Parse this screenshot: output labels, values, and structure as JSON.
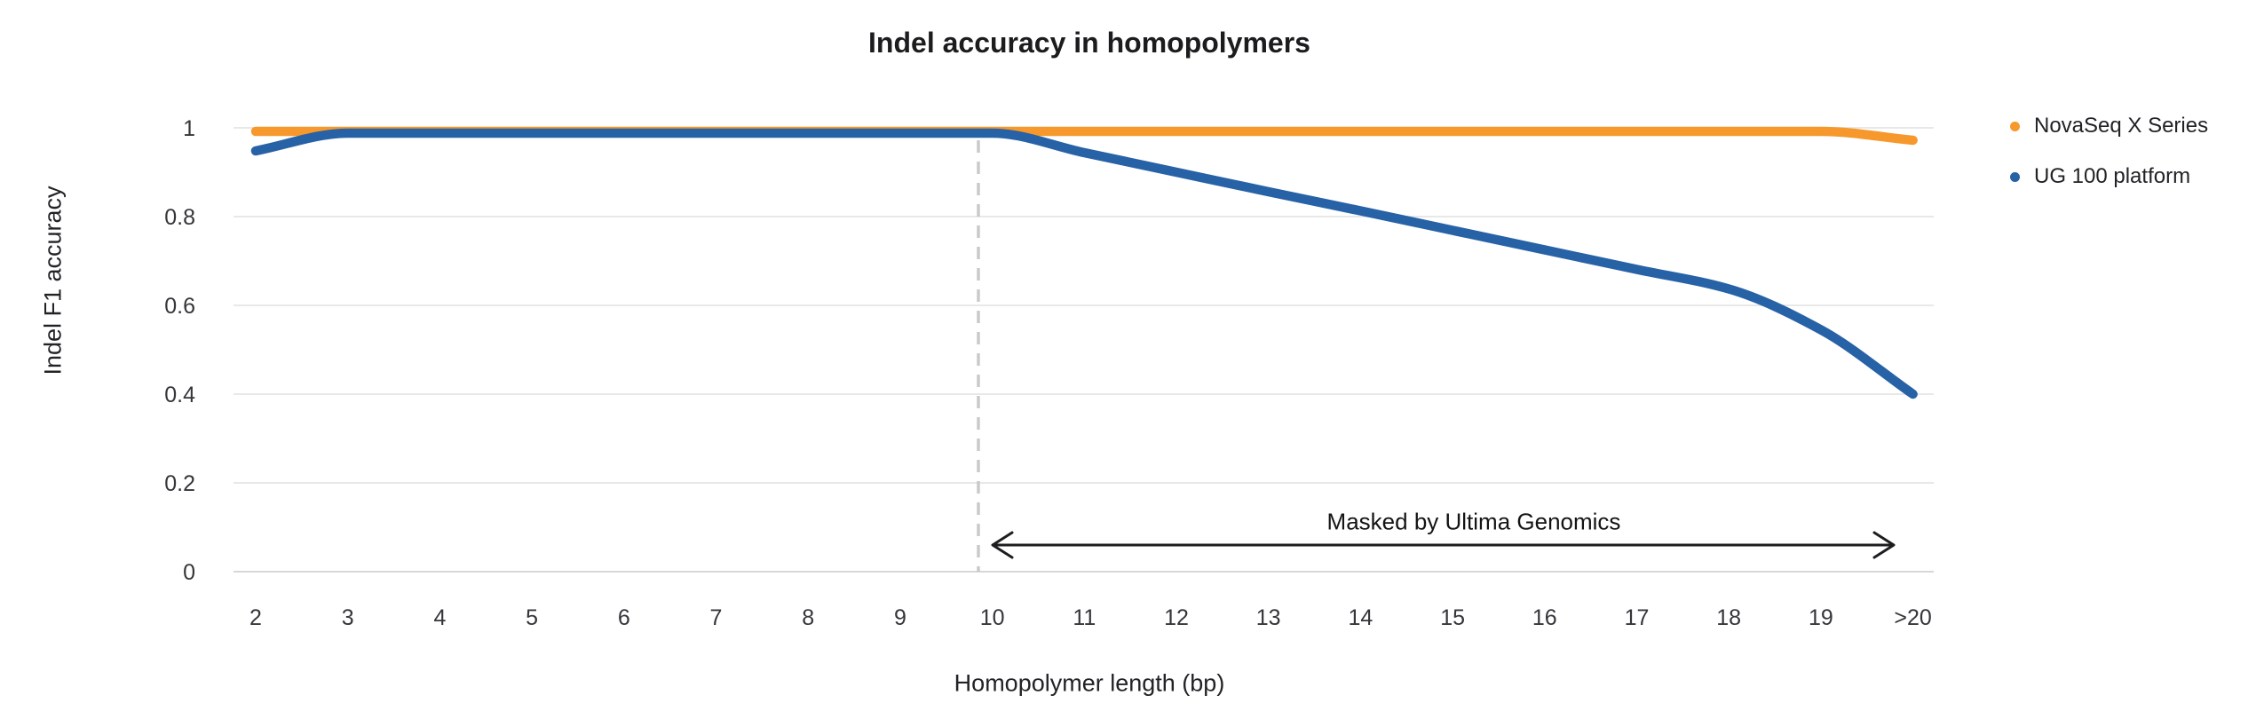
{
  "chart_data": {
    "type": "line",
    "title": "Indel accuracy in homopolymers",
    "xlabel": "Homopolymer length (bp)",
    "ylabel": "Indel F1 accuracy",
    "categories": [
      "2",
      "3",
      "4",
      "5",
      "6",
      "7",
      "8",
      "9",
      "10",
      "11",
      "12",
      "13",
      "14",
      "15",
      "16",
      "17",
      "18",
      "19",
      ">20"
    ],
    "ylim": [
      0,
      1
    ],
    "yticks": [
      0,
      0.2,
      0.4,
      0.6,
      0.8,
      1
    ],
    "ytick_labels": [
      "0",
      "0.2",
      "0.4",
      "0.6",
      "0.8",
      "1"
    ],
    "grid": "horizontal",
    "legend_position": "right",
    "series": [
      {
        "name": "NovaSeq X Series",
        "color": "#F6982B",
        "values": [
          0.992,
          0.992,
          0.992,
          0.992,
          0.992,
          0.992,
          0.992,
          0.992,
          0.992,
          0.992,
          0.992,
          0.992,
          0.992,
          0.992,
          0.992,
          0.992,
          0.992,
          0.992,
          0.972
        ]
      },
      {
        "name": "UG 100 platform",
        "color": "#2762A6",
        "values": [
          0.948,
          0.988,
          0.988,
          0.988,
          0.988,
          0.988,
          0.988,
          0.988,
          0.988,
          0.944,
          0.9,
          0.856,
          0.813,
          0.769,
          0.725,
          0.681,
          0.637,
          0.545,
          0.4
        ]
      }
    ],
    "annotation": {
      "text": "Masked by Ultima Genomics",
      "arrow_from_x": "10",
      "arrow_to_x": ">20"
    },
    "vline_x": "10",
    "colors": {
      "gridline": "#e8e8e8",
      "zero_line": "#d7d7d7",
      "masking_dash": "#c9c9c9",
      "arrow": "#1d1d1f"
    }
  }
}
